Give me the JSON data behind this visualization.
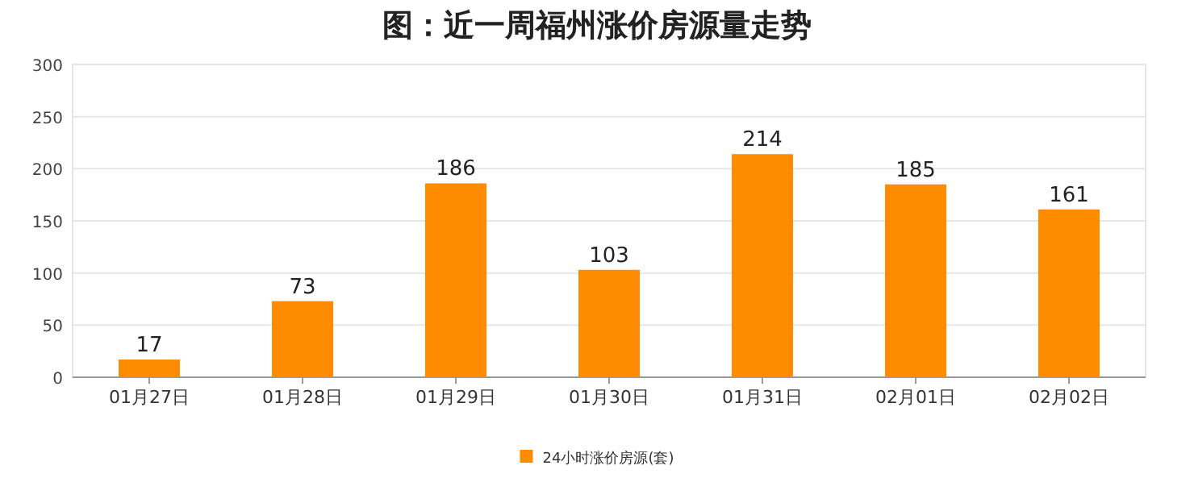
{
  "chart_data": {
    "type": "bar",
    "title": "图：近一周福州涨价房源量走势",
    "categories": [
      "01月27日",
      "01月28日",
      "01月29日",
      "01月30日",
      "01月31日",
      "02月01日",
      "02月02日"
    ],
    "series": [
      {
        "name": "24小时涨价房源(套)",
        "color": "#ff8c00",
        "values": [
          17,
          73,
          186,
          103,
          214,
          185,
          161
        ]
      }
    ],
    "ylim": [
      0,
      300
    ],
    "yticks": [
      0,
      50,
      100,
      150,
      200,
      250,
      300
    ],
    "grid": "y",
    "legend": "bottom",
    "data_labels": true
  }
}
